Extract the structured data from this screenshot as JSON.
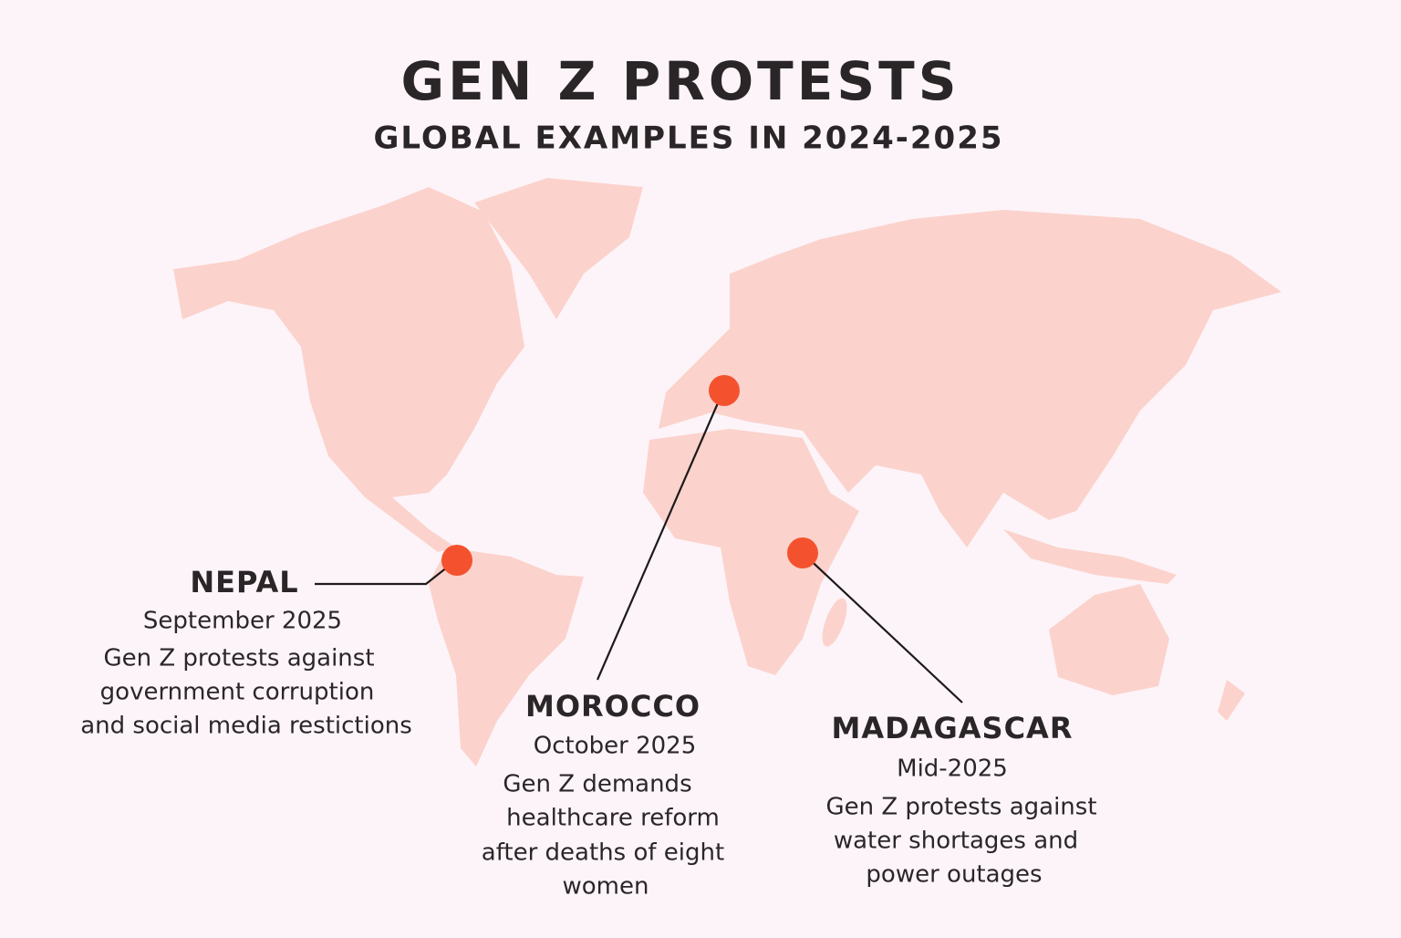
{
  "header": {
    "title": "GEN Z PROTESTS",
    "subtitle": "GLOBAL EXAMPLES IN 2024-2025"
  },
  "callouts": [
    {
      "name": "NEPAL",
      "date": "September 2025",
      "description": [
        "Gen Z protests against",
        "government corruption",
        "and social media restictions"
      ]
    },
    {
      "name": "MOROCCO",
      "date": "October 2025",
      "description": [
        "Gen Z demands",
        "healthcare reform",
        "after deaths of eight",
        "women"
      ]
    },
    {
      "name": "MADAGASCAR",
      "date": "Mid-2025",
      "description": [
        "Gen Z protests against",
        "water shortages and",
        "power outages"
      ]
    }
  ]
}
